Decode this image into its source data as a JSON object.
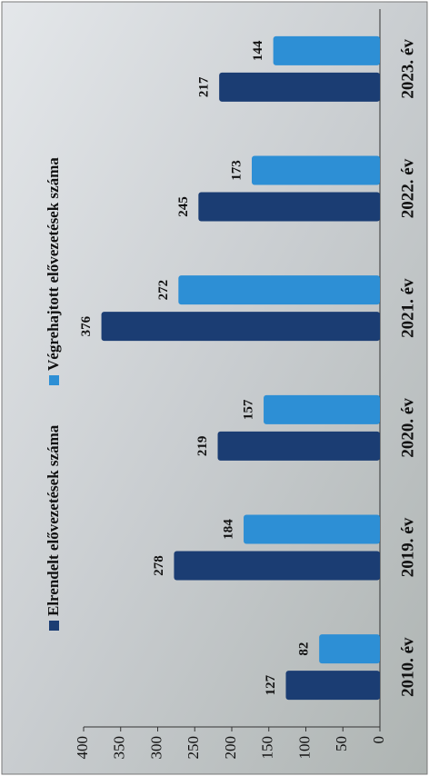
{
  "chart_data": {
    "type": "bar",
    "categories": [
      "2010. év",
      "2019. év",
      "2020. év",
      "2021. év",
      "2022. év",
      "2023. év"
    ],
    "series": [
      {
        "name": "Elrendelt elővezetések száma",
        "color": "#1b3d73",
        "values": [
          127,
          278,
          219,
          376,
          245,
          217
        ]
      },
      {
        "name": "Végrehajtott elővezetések száma",
        "color": "#2d8fd5",
        "values": [
          82,
          184,
          157,
          272,
          173,
          144
        ]
      }
    ],
    "ylim": [
      0,
      400
    ],
    "yticks": [
      0,
      50,
      100,
      150,
      200,
      250,
      300,
      350,
      400
    ],
    "grid": false,
    "legend": "top"
  }
}
